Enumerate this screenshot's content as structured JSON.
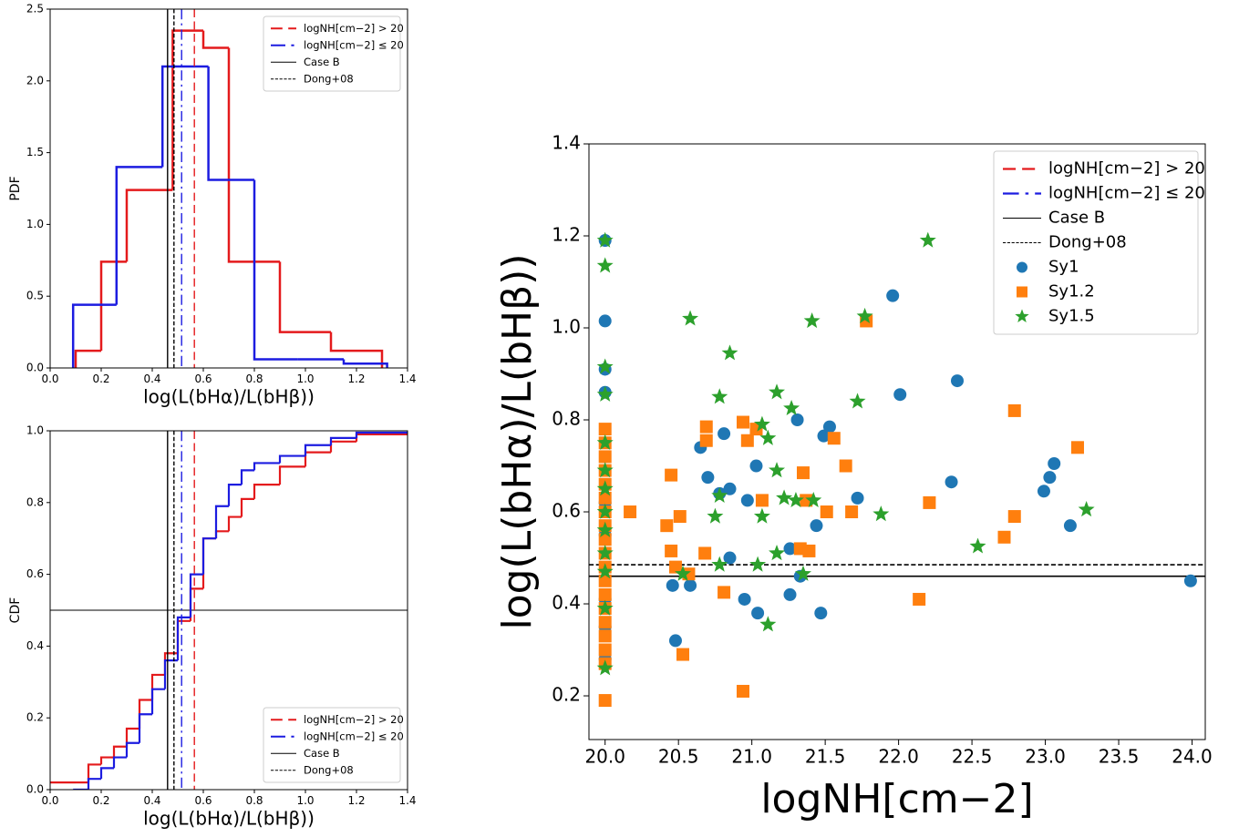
{
  "chart_data": [
    {
      "type": "histogram",
      "x_label": "log(L(bHα)/L(bHβ))",
      "y_label": "PDF",
      "xlim": [
        0,
        1.4
      ],
      "ylim": [
        0,
        2.5
      ],
      "xticks": [
        {
          "value": 0,
          "label": "0.0"
        },
        0.2,
        0.4,
        0.6,
        0.8,
        {
          "value": 1,
          "label": "1.0"
        },
        1.2,
        1.4
      ],
      "yticks": [
        {
          "value": 0,
          "label": "0.0"
        },
        0.5,
        {
          "value": 1,
          "label": "1.0"
        },
        1.5,
        {
          "value": 2,
          "label": "2.0"
        },
        2.5
      ],
      "series": [
        {
          "color": "#e41a1c",
          "bins": [
            0.1,
            0.2,
            0.3,
            0.48,
            0.6,
            0.7,
            0.9,
            1.1,
            1.3
          ],
          "values": [
            0.12,
            0.74,
            1.24,
            2.35,
            2.23,
            0.74,
            0.25,
            0.12
          ]
        },
        {
          "color": "#1c1ce0",
          "bins": [
            0.09,
            0.26,
            0.44,
            0.62,
            0.8,
            0.97,
            1.15,
            1.32
          ],
          "values": [
            0.44,
            1.4,
            2.1,
            1.31,
            0.06,
            0.06,
            0.03
          ]
        }
      ],
      "reference_orientation": "vertical",
      "reference_lines": [
        {
          "name": "logNH[cm−2] > 20",
          "value": 0.565,
          "color": "#e41a1c",
          "style": "dashed"
        },
        {
          "name": "logNH[cm−2] ≤ 20",
          "value": 0.515,
          "color": "#1c1ce0",
          "style": "dashdot"
        },
        {
          "name": "Case B",
          "value": 0.46,
          "color": "#000000",
          "style": "solid"
        },
        {
          "name": "Dong+08",
          "value": 0.485,
          "color": "#000000",
          "style": "dotted"
        }
      ],
      "legend": "upper right"
    },
    {
      "type": "step",
      "x_label": "log(L(bHα)/L(bHβ))",
      "y_label": "CDF",
      "xlim": [
        0,
        1.4
      ],
      "ylim": [
        0,
        1
      ],
      "xticks": [
        {
          "value": 0,
          "label": "0.0"
        },
        0.2,
        0.4,
        0.6,
        0.8,
        {
          "value": 1,
          "label": "1.0"
        },
        1.2,
        1.4
      ],
      "yticks": [
        {
          "value": 0,
          "label": "0.0"
        },
        0.2,
        0.4,
        0.6,
        0.8,
        {
          "value": 1,
          "label": "1.0"
        }
      ],
      "hline": {
        "value": 0.5,
        "color": "#808080"
      },
      "series": [
        {
          "color": "#e41a1c",
          "x": [
            0,
            0.1,
            0.15,
            0.2,
            0.25,
            0.3,
            0.35,
            0.4,
            0.45,
            0.5,
            0.55,
            0.6,
            0.65,
            0.7,
            0.75,
            0.8,
            0.9,
            1.0,
            1.1,
            1.2,
            1.4
          ],
          "values": [
            0.02,
            0.02,
            0.07,
            0.09,
            0.12,
            0.17,
            0.25,
            0.32,
            0.38,
            0.47,
            0.56,
            0.7,
            0.72,
            0.76,
            0.81,
            0.85,
            0.9,
            0.94,
            0.97,
            0.99,
            0.99
          ]
        },
        {
          "color": "#1c1ce0",
          "x": [
            0.09,
            0.15,
            0.2,
            0.25,
            0.3,
            0.35,
            0.4,
            0.45,
            0.5,
            0.55,
            0.6,
            0.65,
            0.7,
            0.75,
            0.8,
            0.9,
            1.0,
            1.1,
            1.2,
            1.4
          ],
          "values": [
            0,
            0.03,
            0.06,
            0.09,
            0.13,
            0.21,
            0.28,
            0.36,
            0.48,
            0.6,
            0.7,
            0.79,
            0.85,
            0.89,
            0.91,
            0.93,
            0.96,
            0.98,
            0.995,
            0.995
          ]
        }
      ],
      "reference_orientation": "vertical",
      "reference_lines": [
        {
          "name": "logNH[cm−2] > 20",
          "value": 0.565,
          "color": "#e41a1c",
          "style": "dashed"
        },
        {
          "name": "logNH[cm−2] ≤ 20",
          "value": 0.515,
          "color": "#1c1ce0",
          "style": "dashdot"
        },
        {
          "name": "Case B",
          "value": 0.46,
          "color": "#000000",
          "style": "solid"
        },
        {
          "name": "Dong+08",
          "value": 0.485,
          "color": "#000000",
          "style": "dotted"
        }
      ],
      "legend": "lower right"
    },
    {
      "type": "scatter",
      "x_label": "logNH[cm−2]",
      "y_label": "log(L(bHα)/L(bHβ))",
      "xlim": [
        19.89,
        24.09
      ],
      "ylim": [
        0.105,
        1.4
      ],
      "xticks": [
        {
          "value": 20,
          "label": "20.0"
        },
        20.5,
        {
          "value": 21,
          "label": "21.0"
        },
        21.5,
        {
          "value": 22,
          "label": "22.0"
        },
        22.5,
        {
          "value": 23,
          "label": "23.0"
        },
        23.5,
        {
          "value": 24,
          "label": "24.0"
        }
      ],
      "yticks": [
        0.2,
        0.4,
        0.6,
        0.8,
        {
          "value": 1,
          "label": "1.0"
        },
        1.2,
        1.4
      ],
      "reference_orientation": "horizontal",
      "reference_lines": [
        {
          "name": "logNH[cm−2] > 20",
          "color": "#e41a1c",
          "style": "dashed"
        },
        {
          "name": "logNH[cm−2] ≤ 20",
          "color": "#1c1ce0",
          "style": "dashdot"
        },
        {
          "name": "Case B",
          "value": 0.46,
          "color": "#000000",
          "style": "solid"
        },
        {
          "name": "Dong+08",
          "value": 0.485,
          "color": "#000000",
          "style": "dotted"
        }
      ],
      "series": [
        {
          "name": "Sy1",
          "color": "#1f77b4",
          "marker": "circle",
          "x": [
            20,
            20,
            20,
            20,
            20,
            20,
            20,
            20,
            20,
            20.65,
            20.7,
            20.81,
            20.78,
            20.85,
            20.85,
            20.46,
            20.48,
            20.58,
            20.95,
            20.97,
            21.03,
            21.04,
            21.26,
            21.26,
            21.31,
            21.33,
            21.44,
            21.47,
            21.49,
            21.53,
            21.72,
            21.96,
            22.01,
            22.36,
            22.4,
            22.99,
            23.03,
            23.06,
            23.17,
            23.99
          ],
          "values": [
            1.19,
            1.015,
            0.91,
            0.86,
            0.62,
            0.55,
            0.41,
            0.35,
            0.28,
            0.74,
            0.675,
            0.77,
            0.64,
            0.65,
            0.5,
            0.44,
            0.32,
            0.44,
            0.41,
            0.625,
            0.7,
            0.38,
            0.42,
            0.52,
            0.8,
            0.46,
            0.57,
            0.38,
            0.765,
            0.785,
            0.63,
            1.07,
            0.855,
            0.665,
            0.885,
            0.645,
            0.675,
            0.705,
            0.57,
            0.45
          ]
        },
        {
          "name": "Sy1.2",
          "color": "#ff7f0e",
          "marker": "square",
          "x": [
            20,
            20,
            20,
            20,
            20,
            20,
            20,
            20,
            20,
            20,
            20,
            20,
            20,
            20,
            20,
            20,
            20,
            20,
            20,
            20.17,
            20.42,
            20.45,
            20.45,
            20.48,
            20.51,
            20.53,
            20.57,
            20.69,
            20.69,
            20.68,
            20.81,
            20.94,
            20.94,
            20.97,
            21.03,
            21.07,
            21.35,
            21.33,
            21.39,
            21.37,
            21.51,
            21.56,
            21.64,
            21.68,
            21.78,
            22.14,
            22.21,
            22.72,
            22.79,
            22.79,
            23.22
          ],
          "values": [
            0.19,
            0.27,
            0.3,
            0.33,
            0.36,
            0.39,
            0.42,
            0.45,
            0.48,
            0.51,
            0.54,
            0.57,
            0.6,
            0.63,
            0.66,
            0.69,
            0.72,
            0.75,
            0.78,
            0.6,
            0.57,
            0.68,
            0.515,
            0.48,
            0.59,
            0.29,
            0.465,
            0.785,
            0.755,
            0.51,
            0.425,
            0.795,
            0.21,
            0.755,
            0.78,
            0.625,
            0.685,
            0.52,
            0.515,
            0.625,
            0.6,
            0.76,
            0.7,
            0.6,
            1.015,
            0.41,
            0.62,
            0.545,
            0.59,
            0.82,
            0.74
          ]
        },
        {
          "name": "Sy1.5",
          "color": "#2ca02c",
          "marker": "star",
          "x": [
            20,
            20,
            20,
            20,
            20,
            20,
            20,
            20,
            20,
            20,
            20,
            20,
            20,
            20.58,
            20.85,
            20.78,
            20.78,
            20.75,
            20.78,
            20.53,
            21.07,
            21.11,
            21.07,
            21.04,
            21.11,
            21.17,
            21.17,
            21.17,
            21.27,
            21.22,
            21.3,
            21.35,
            21.41,
            21.42,
            21.72,
            21.77,
            21.88,
            22.2,
            22.54,
            23.28
          ],
          "values": [
            1.19,
            1.135,
            0.915,
            0.855,
            0.75,
            0.69,
            0.65,
            0.6,
            0.56,
            0.51,
            0.47,
            0.39,
            0.26,
            1.02,
            0.945,
            0.85,
            0.635,
            0.59,
            0.485,
            0.465,
            0.79,
            0.76,
            0.59,
            0.485,
            0.355,
            0.86,
            0.69,
            0.51,
            0.825,
            0.63,
            0.625,
            0.465,
            1.015,
            0.625,
            0.84,
            1.025,
            0.595,
            1.19,
            0.525,
            0.605
          ]
        }
      ],
      "legend": "upper right"
    }
  ]
}
